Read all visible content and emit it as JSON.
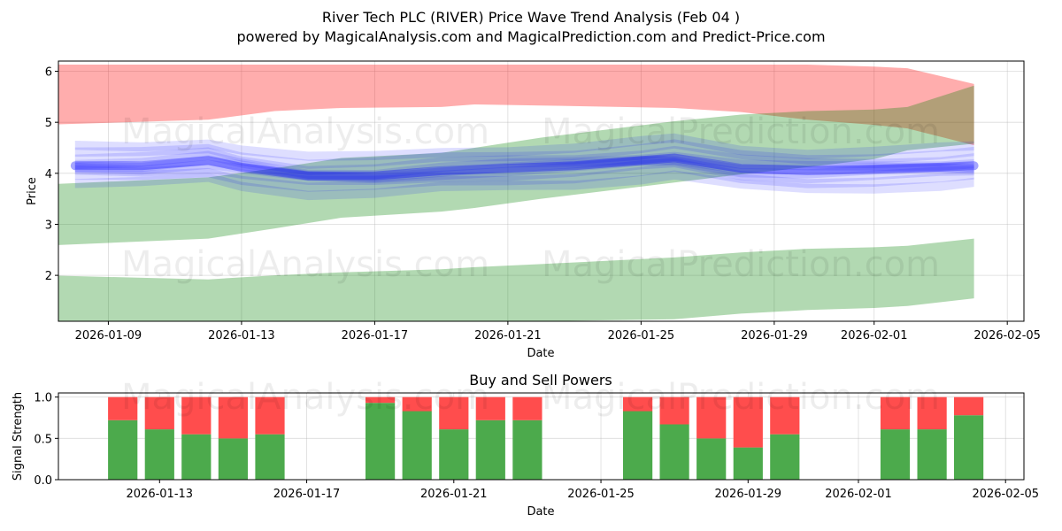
{
  "header": {
    "title": "River Tech PLC (RIVER) Price Wave Trend Analysis (Feb 04 )",
    "subtitle": "powered by MagicalAnalysis.com and MagicalPrediction.com and Predict-Price.com"
  },
  "watermarks": [
    "MagicalAnalysis.com",
    "MagicalPrediction.com"
  ],
  "colors": {
    "red_band": "#ff0000",
    "green_band": "#008000",
    "blue_band": "#0000ff",
    "buy_bar": "#4caa4c",
    "sell_bar": "#ff4d4d"
  },
  "chart_data": [
    {
      "type": "area",
      "title": "",
      "xlabel": "Date",
      "ylabel": "Price",
      "xlim": [
        "2026-01-07T12:00",
        "2026-02-05T12:00"
      ],
      "ylim": [
        1.1,
        6.2
      ],
      "yticks": [
        2,
        3,
        4,
        5,
        6
      ],
      "xticks": [
        "2026-01-09",
        "2026-01-13",
        "2026-01-17",
        "2026-01-21",
        "2026-01-25",
        "2026-01-29",
        "2026-02-01",
        "2026-02-05"
      ],
      "grid": true,
      "bands": [
        {
          "name": "red band",
          "color": "red",
          "opacity": 0.32,
          "x": [
            "2026-01-07",
            "2026-01-12",
            "2026-01-14",
            "2026-01-16",
            "2026-01-19",
            "2026-01-20",
            "2026-01-22",
            "2026-01-26",
            "2026-01-28",
            "2026-01-30",
            "2026-02-01",
            "2026-02-02",
            "2026-02-04"
          ],
          "upper": [
            6.13,
            6.13,
            6.13,
            6.13,
            6.13,
            6.13,
            6.13,
            6.13,
            6.13,
            6.13,
            6.09,
            6.06,
            5.75
          ],
          "lower": [
            4.95,
            5.05,
            5.22,
            5.28,
            5.3,
            5.35,
            5.33,
            5.28,
            5.2,
            5.05,
            4.95,
            4.88,
            4.55
          ]
        },
        {
          "name": "green upper band",
          "color": "green",
          "opacity": 0.3,
          "x": [
            "2026-01-07",
            "2026-01-12",
            "2026-01-14",
            "2026-01-16",
            "2026-01-19",
            "2026-01-20",
            "2026-01-22",
            "2026-01-26",
            "2026-01-28",
            "2026-01-30",
            "2026-02-01",
            "2026-02-02",
            "2026-02-04"
          ],
          "upper": [
            3.78,
            3.92,
            4.1,
            4.3,
            4.4,
            4.5,
            4.7,
            5.02,
            5.15,
            5.22,
            5.25,
            5.3,
            5.72
          ],
          "lower": [
            2.58,
            2.72,
            2.92,
            3.13,
            3.25,
            3.32,
            3.5,
            3.82,
            3.98,
            4.12,
            4.28,
            4.45,
            4.58
          ]
        },
        {
          "name": "green lower band",
          "color": "green",
          "opacity": 0.3,
          "x": [
            "2026-01-07",
            "2026-01-12",
            "2026-01-14",
            "2026-01-16",
            "2026-01-19",
            "2026-01-20",
            "2026-01-22",
            "2026-01-26",
            "2026-01-28",
            "2026-01-30",
            "2026-02-01",
            "2026-02-02",
            "2026-02-04"
          ],
          "upper": [
            2.0,
            1.92,
            2.0,
            2.06,
            2.12,
            2.16,
            2.22,
            2.35,
            2.45,
            2.52,
            2.55,
            2.58,
            2.72
          ],
          "lower": [
            1.1,
            1.1,
            1.1,
            1.1,
            1.1,
            1.1,
            1.1,
            1.14,
            1.25,
            1.32,
            1.36,
            1.4,
            1.55
          ]
        }
      ],
      "wave_lines": {
        "color": "blue",
        "x": [
          "2026-01-08",
          "2026-01-10",
          "2026-01-12",
          "2026-01-13",
          "2026-01-15",
          "2026-01-17",
          "2026-01-19",
          "2026-01-21",
          "2026-01-23",
          "2026-01-25",
          "2026-01-26",
          "2026-01-28",
          "2026-01-30",
          "2026-02-01",
          "2026-02-03",
          "2026-02-04"
        ],
        "center": [
          4.15,
          4.15,
          4.25,
          4.12,
          3.95,
          3.95,
          4.05,
          4.1,
          4.15,
          4.25,
          4.3,
          4.1,
          4.05,
          4.08,
          4.12,
          4.15
        ],
        "offsets": [
          -0.35,
          -0.22,
          -0.12,
          -0.05,
          0.0,
          0.06,
          0.14,
          0.24,
          0.36
        ]
      }
    },
    {
      "type": "bar",
      "title": "Buy and Sell Powers",
      "xlabel": "Date",
      "ylabel": "Signal Strength",
      "xlim": [
        "2026-01-10T06:00",
        "2026-02-05T12:00"
      ],
      "ylim": [
        0.0,
        1.05
      ],
      "yticks": [
        "0.0",
        "0.5",
        "1.0"
      ],
      "xticks": [
        "2026-01-13",
        "2026-01-17",
        "2026-01-21",
        "2026-01-25",
        "2026-01-29",
        "2026-02-01",
        "2026-02-05"
      ],
      "grid": true,
      "series": [
        {
          "name": "Buy",
          "dates": [
            "2026-01-12",
            "2026-01-13",
            "2026-01-14",
            "2026-01-15",
            "2026-01-16",
            "2026-01-19",
            "2026-01-20",
            "2026-01-21",
            "2026-01-22",
            "2026-01-23",
            "2026-01-26",
            "2026-01-27",
            "2026-01-28",
            "2026-01-29",
            "2026-01-30",
            "2026-02-02",
            "2026-02-03",
            "2026-02-04"
          ],
          "values": [
            0.72,
            0.61,
            0.55,
            0.5,
            0.55,
            0.93,
            0.83,
            0.61,
            0.72,
            0.72,
            0.83,
            0.67,
            0.5,
            0.39,
            0.55,
            0.61,
            0.61,
            0.78
          ]
        },
        {
          "name": "Sell",
          "dates": [
            "2026-01-12",
            "2026-01-13",
            "2026-01-14",
            "2026-01-15",
            "2026-01-16",
            "2026-01-19",
            "2026-01-20",
            "2026-01-21",
            "2026-01-22",
            "2026-01-23",
            "2026-01-26",
            "2026-01-27",
            "2026-01-28",
            "2026-01-29",
            "2026-01-30",
            "2026-02-02",
            "2026-02-03",
            "2026-02-04"
          ],
          "values": [
            0.28,
            0.39,
            0.45,
            0.5,
            0.45,
            0.07,
            0.17,
            0.39,
            0.28,
            0.28,
            0.17,
            0.33,
            0.5,
            0.61,
            0.45,
            0.39,
            0.39,
            0.22
          ]
        }
      ]
    }
  ]
}
